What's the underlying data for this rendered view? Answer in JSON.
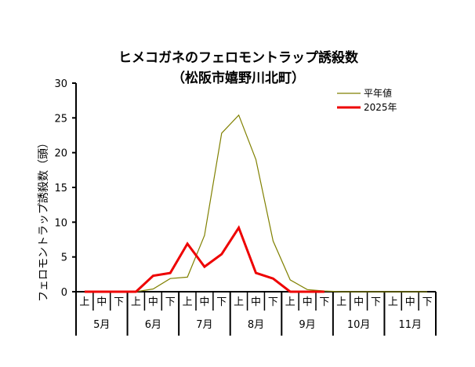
{
  "chart_data": {
    "type": "line",
    "title": "ヒメコガネのフェロモントラップ誘殺数",
    "subtitle": "（松阪市嬉野川北町）",
    "ylabel": "フェロモントラップ誘殺数（頭）",
    "ylim": [
      0,
      30
    ],
    "yticks": [
      "0",
      "5",
      "10",
      "15",
      "20",
      "25",
      "30"
    ],
    "decades": [
      "上",
      "中",
      "下",
      "上",
      "中",
      "下",
      "上",
      "中",
      "下",
      "上",
      "中",
      "下",
      "上",
      "中",
      "下",
      "上",
      "中",
      "下",
      "上",
      "中",
      "下"
    ],
    "months": [
      "5月",
      "6月",
      "7月",
      "8月",
      "9月",
      "10月",
      "11月"
    ],
    "legend_position": "top-right",
    "series": [
      {
        "name": "平年値",
        "color": "#808000",
        "values": [
          0,
          0,
          0,
          0,
          0.4,
          1.9,
          2.1,
          8.1,
          22.8,
          25.4,
          19.0,
          7.3,
          1.7,
          0.3,
          0.1,
          0,
          0,
          0,
          0,
          0,
          0
        ]
      },
      {
        "name": "2025年",
        "color": "#ee0000",
        "values": [
          0,
          0,
          0,
          0,
          2.3,
          2.7,
          6.9,
          3.6,
          5.4,
          9.2,
          2.7,
          1.9,
          0,
          0,
          0,
          null,
          null,
          null,
          null,
          null,
          null
        ]
      }
    ]
  }
}
